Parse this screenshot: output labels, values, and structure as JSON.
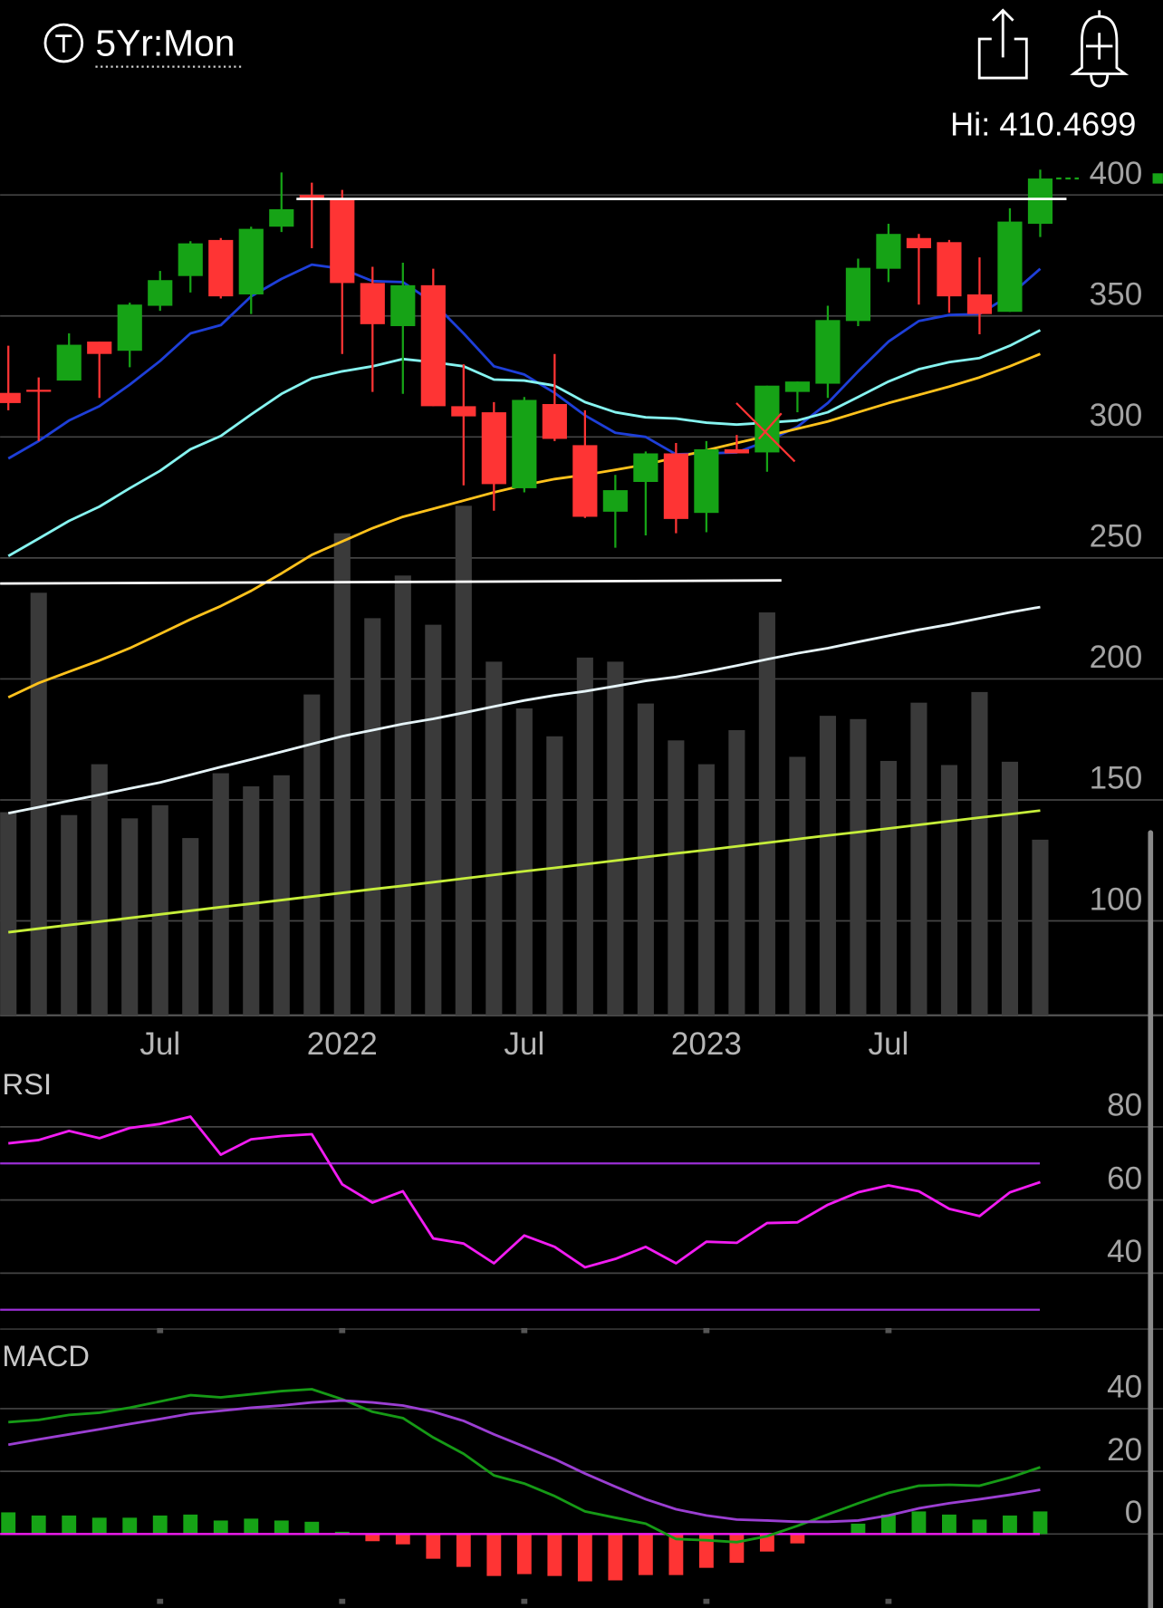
{
  "header": {
    "title": "5Yr:Mon",
    "high": "Hi: 410.4699"
  },
  "chart_data": [
    {
      "type": "candlestick",
      "categories": [
        null,
        null,
        null,
        null,
        null,
        "Jul",
        null,
        null,
        null,
        null,
        null,
        "2022",
        null,
        null,
        null,
        null,
        null,
        "Jul",
        null,
        null,
        null,
        null,
        null,
        "2023",
        null,
        null,
        null,
        null,
        null,
        "Jul",
        null,
        null,
        null,
        null,
        null
      ],
      "open": [
        318.2,
        319.5,
        323.3,
        339.4,
        335.6,
        354.2,
        366.5,
        381.4,
        358.9,
        386.9,
        400.0,
        398.7,
        363.6,
        345.8,
        362.7,
        312.7,
        310.2,
        278.8,
        313.6,
        296.6,
        269.1,
        281.4,
        293.2,
        268.6,
        294.9,
        293.6,
        318.6,
        322.0,
        347.9,
        369.5,
        382.2,
        380.5,
        358.9,
        351.7,
        388.1
      ],
      "high": [
        337.7,
        324.6,
        342.8,
        339.4,
        355.5,
        368.6,
        380.9,
        382.2,
        386.9,
        409.3,
        405.1,
        402.1,
        370.3,
        372.0,
        369.5,
        330.0,
        314.4,
        316.5,
        334.3,
        311.0,
        284.3,
        294.0,
        297.5,
        298.3,
        300.8,
        321.2,
        322.9,
        354.2,
        373.7,
        388.1,
        383.9,
        381.4,
        374.2,
        394.5,
        410.4699
      ],
      "low": [
        311.0,
        298.3,
        323.3,
        316.1,
        328.8,
        352.1,
        359.7,
        357.2,
        350.8,
        384.7,
        378.0,
        334.3,
        318.6,
        317.8,
        312.7,
        280.0,
        269.5,
        277.1,
        298.3,
        266.5,
        254.2,
        259.3,
        260.2,
        260.6,
        293.2,
        285.6,
        310.2,
        316.1,
        345.8,
        364.0,
        354.7,
        351.3,
        342.4,
        351.7,
        382.6
      ],
      "close": [
        314.0,
        319.0,
        338.1,
        334.3,
        354.7,
        364.8,
        380.0,
        358.1,
        386.0,
        394.1,
        398.7,
        363.6,
        346.6,
        362.7,
        312.7,
        308.5,
        280.5,
        315.3,
        299.2,
        267.0,
        278.0,
        293.2,
        266.1,
        294.9,
        293.2,
        321.2,
        322.9,
        348.3,
        369.9,
        383.9,
        378.0,
        358.1,
        350.8,
        389.0,
        406.8
      ],
      "up_color": "#16a316",
      "down_color": "#fe3434",
      "volume": {
        "color": "#3a3a3a",
        "ylim": [
          0,
          2000
        ],
        "values": [
          495,
          1030,
          488,
          612,
          480,
          512,
          432,
          590,
          558,
          585,
          782,
          1175,
          968,
          1072,
          952,
          1242,
          862,
          748,
          680,
          872,
          862,
          760,
          670,
          612,
          695,
          982,
          630,
          730,
          722,
          620,
          762,
          610,
          788,
          618,
          428
        ]
      },
      "series": [
        {
          "color": "#1e3fd8",
          "values": [
            291.1,
            298.3,
            306.8,
            312.7,
            321.6,
            331.4,
            342.8,
            346.2,
            358.1,
            365.3,
            371.2,
            369.5,
            364.4,
            364.0,
            355.5,
            342.8,
            329.2,
            325.8,
            318.2,
            308.9,
            301.7,
            300.0,
            292.8,
            293.2,
            293.6,
            298.3,
            304.2,
            314.0,
            327.1,
            339.4,
            347.9,
            350.4,
            350.8,
            358.5,
            369.5
          ]
        },
        {
          "color": "#86f4f0",
          "values": [
            250.8,
            258.0,
            265.3,
            271.2,
            278.8,
            286.0,
            294.9,
            300.4,
            309.3,
            317.8,
            324.2,
            327.1,
            329.2,
            332.2,
            330.9,
            329.2,
            323.7,
            323.3,
            321.2,
            314.4,
            310.2,
            308.1,
            307.6,
            305.9,
            305.1,
            305.9,
            306.8,
            310.2,
            316.5,
            322.9,
            328.0,
            330.9,
            332.6,
            337.7,
            344.1
          ]
        },
        {
          "color": "#ffc21c",
          "values": [
            192.4,
            198.3,
            203.0,
            207.6,
            212.7,
            218.6,
            224.6,
            230.1,
            236.4,
            243.6,
            251.3,
            256.8,
            262.3,
            267.0,
            270.3,
            273.7,
            277.1,
            280.1,
            282.6,
            284.3,
            286.4,
            288.6,
            291.5,
            294.5,
            297.5,
            300.4,
            303.4,
            306.4,
            310.2,
            314.0,
            317.4,
            320.8,
            324.6,
            329.2,
            334.3
          ]
        },
        {
          "color": "#e6f4f8",
          "values": [
            144.5,
            147.0,
            149.6,
            152.1,
            154.7,
            157.2,
            160.4,
            163.6,
            166.7,
            169.9,
            173.1,
            176.3,
            178.8,
            181.4,
            183.5,
            186.0,
            188.6,
            191.1,
            193.2,
            194.9,
            197.0,
            199.2,
            200.8,
            203.0,
            205.5,
            208.1,
            210.6,
            212.7,
            215.3,
            217.8,
            220.3,
            222.5,
            225.0,
            227.5,
            229.7
          ]
        },
        {
          "color": "#c6ee3a",
          "values": [
            95.3,
            96.8,
            98.3,
            99.7,
            101.2,
            102.7,
            104.2,
            105.7,
            107.1,
            108.6,
            110.1,
            111.6,
            113.1,
            114.5,
            116.0,
            117.5,
            119.0,
            120.5,
            121.9,
            123.4,
            124.9,
            126.4,
            127.9,
            129.3,
            130.8,
            132.3,
            133.8,
            135.3,
            136.7,
            138.2,
            139.7,
            141.2,
            142.7,
            144.1,
            145.6
          ]
        }
      ],
      "ylim": [
        61,
        417
      ],
      "yticks": [
        100,
        150,
        200,
        250,
        300,
        350,
        400
      ],
      "grid": true
    },
    {
      "type": "line",
      "title": "RSI",
      "series": [
        {
          "color": "#f21cf2",
          "values": [
            75.5,
            76.4,
            78.9,
            76.9,
            79.7,
            80.8,
            82.8,
            72.4,
            76.6,
            77.5,
            78.0,
            64.3,
            59.3,
            62.4,
            49.5,
            48.1,
            42.7,
            50.3,
            47.2,
            41.6,
            43.9,
            47.2,
            42.7,
            48.6,
            48.3,
            53.7,
            53.9,
            58.7,
            62.1,
            64.0,
            62.4,
            57.6,
            55.6,
            62.1,
            64.9
          ]
        }
      ],
      "reference_lines": [
        70,
        30
      ],
      "reference_color": "#9b2fd6",
      "ylim": [
        25,
        96.5
      ],
      "yticks": [
        40,
        60,
        80
      ],
      "grid": true
    },
    {
      "type": "macd",
      "title": "MACD",
      "histogram": {
        "up_color": "#16a316",
        "down_color": "#fe3434",
        "values": [
          6.9,
          5.9,
          5.9,
          5.2,
          5.2,
          5.9,
          6.2,
          4.3,
          4.9,
          4.3,
          3.9,
          0.7,
          -2.3,
          -3.3,
          -7.9,
          -10.5,
          -13.4,
          -12.8,
          -13.4,
          -15.1,
          -14.8,
          -13.1,
          -13.1,
          -10.8,
          -9.2,
          -5.6,
          -3.0,
          0,
          3.3,
          6.2,
          7.2,
          6.2,
          4.6,
          5.9,
          7.2
        ]
      },
      "series": [
        {
          "color": "#169a16",
          "values": [
            35.7,
            36.4,
            38.0,
            38.7,
            40.3,
            42.3,
            44.3,
            43.6,
            44.6,
            45.6,
            46.2,
            43.0,
            39.0,
            37.0,
            30.8,
            25.6,
            18.7,
            16.1,
            12.1,
            7.2,
            5.2,
            3.3,
            -1.6,
            -2.0,
            -2.6,
            -0.7,
            2.6,
            6.2,
            9.8,
            13.1,
            15.4,
            15.7,
            15.4,
            18.0,
            21.3
          ]
        },
        {
          "color": "#9b3fd2",
          "values": [
            28.5,
            30.2,
            31.8,
            33.4,
            35.1,
            36.7,
            38.4,
            39.3,
            40.3,
            41.0,
            42.0,
            42.6,
            42.0,
            41.0,
            39.0,
            36.1,
            31.8,
            27.9,
            23.9,
            19.3,
            15.1,
            11.1,
            7.9,
            5.9,
            4.6,
            4.3,
            3.9,
            3.9,
            4.3,
            5.9,
            8.2,
            9.8,
            11.1,
            12.5,
            14.1
          ]
        }
      ],
      "reference_lines": [
        0
      ],
      "reference_color": "#f21cf2",
      "ylim": [
        -21,
        51
      ],
      "yticks": [
        0,
        20,
        40
      ],
      "grid": true
    }
  ]
}
